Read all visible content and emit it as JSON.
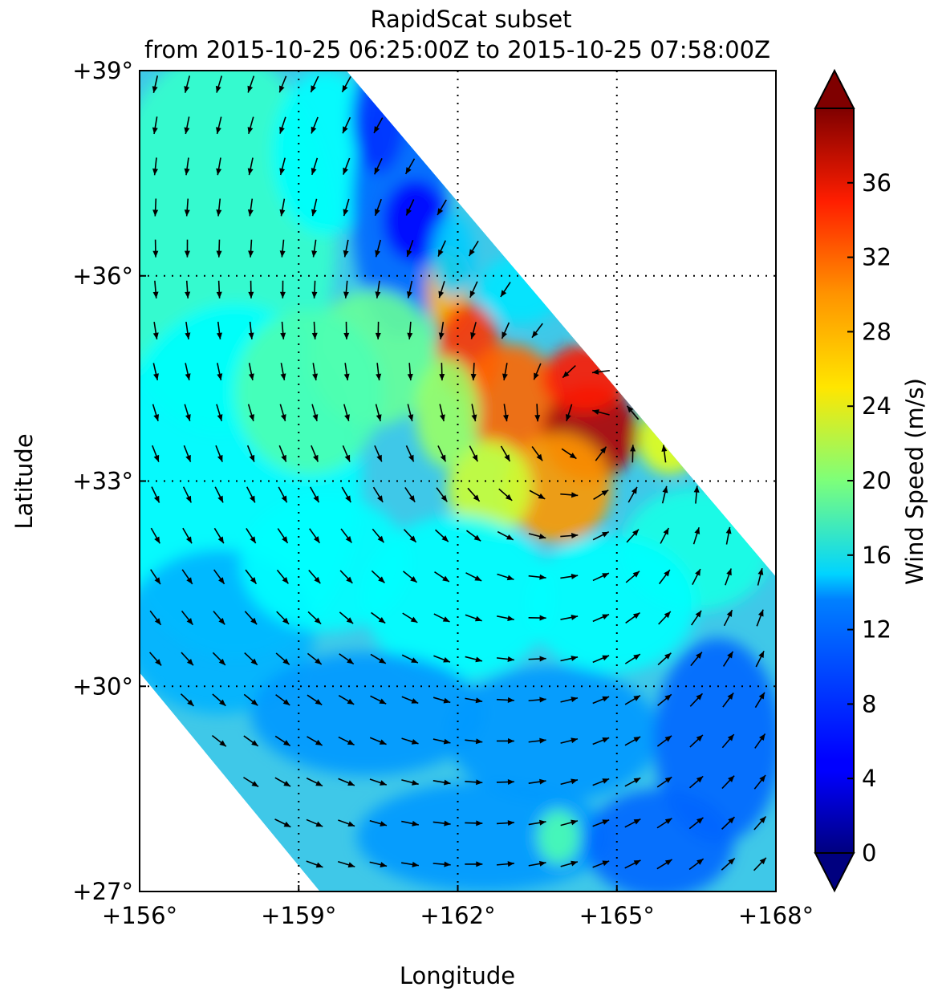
{
  "chart_data": {
    "type": "heatmap",
    "title": "RapidScat subset",
    "subtitle": "from 2015-10-25 06:25:00Z to 2015-10-25 07:58:00Z",
    "xlabel": "Longitude",
    "ylabel": "Latitude",
    "xlim": [
      156,
      168
    ],
    "ylim": [
      27,
      39
    ],
    "xticks": [
      {
        "value": 156,
        "label": "+156°"
      },
      {
        "value": 159,
        "label": "+159°"
      },
      {
        "value": 162,
        "label": "+162°"
      },
      {
        "value": 165,
        "label": "+165°"
      },
      {
        "value": 168,
        "label": "+168°"
      }
    ],
    "yticks": [
      {
        "value": 27,
        "label": "+27°"
      },
      {
        "value": 30,
        "label": "+30°"
      },
      {
        "value": 33,
        "label": "+33°"
      },
      {
        "value": 36,
        "label": "+36°"
      },
      {
        "value": 39,
        "label": "+39°"
      }
    ],
    "grid": "dotted",
    "colorbar": {
      "label": "Wind Speed (m/s)",
      "range": [
        0,
        40
      ],
      "extend": "both",
      "colormap": "jet",
      "ticks": [
        {
          "value": 0,
          "label": "0"
        },
        {
          "value": 4,
          "label": "4"
        },
        {
          "value": 8,
          "label": "8"
        },
        {
          "value": 12,
          "label": "12"
        },
        {
          "value": 16,
          "label": "16"
        },
        {
          "value": 20,
          "label": "20"
        },
        {
          "value": 24,
          "label": "24"
        },
        {
          "value": 28,
          "label": "28"
        },
        {
          "value": 32,
          "label": "32"
        },
        {
          "value": 36,
          "label": "36"
        }
      ]
    },
    "swath_polygon_lonlat": [
      [
        156,
        39
      ],
      [
        159.9,
        39
      ],
      [
        168,
        31.6
      ],
      [
        168,
        27
      ],
      [
        159.4,
        27
      ],
      [
        156,
        30.2
      ]
    ],
    "storm_center_lonlat": [
      164.5,
      33.7
    ],
    "approx_max_wind": 40,
    "calm_core_lonlat": [
      161.2,
      36.8
    ]
  }
}
